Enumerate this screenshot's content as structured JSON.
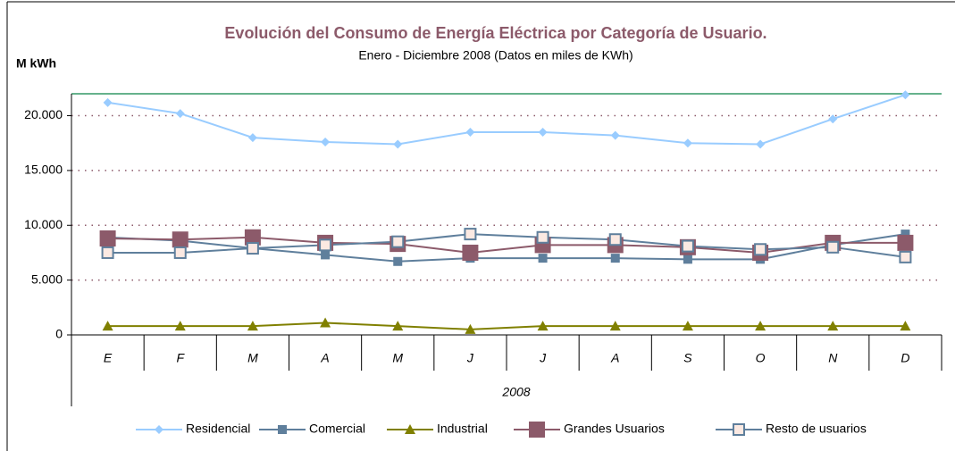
{
  "chart_data": {
    "type": "line",
    "title": "Evolución del Consumo de Energía Eléctrica por Categoría de Usuario.",
    "subtitle": "Enero  - Diciembre 2008 (Datos en miles de KWh)",
    "ylabel": "M kWh",
    "xlabel": "2008",
    "categories": [
      "E",
      "F",
      "M",
      "A",
      "M",
      "J",
      "J",
      "A",
      "S",
      "O",
      "N",
      "D"
    ],
    "series": [
      {
        "name": "Residencial",
        "color": "#99ccff",
        "marker": "diamond",
        "values": [
          21200,
          20200,
          18000,
          17600,
          17400,
          18500,
          18500,
          18200,
          17500,
          17400,
          19700,
          21900
        ]
      },
      {
        "name": "Comercial",
        "color": "#5f7f9c",
        "marker": "square",
        "values": [
          8900,
          8600,
          7900,
          7300,
          6700,
          7000,
          7000,
          7000,
          6900,
          6900,
          8200,
          9200
        ]
      },
      {
        "name": "Industrial",
        "color": "#808000",
        "marker": "triangle",
        "values": [
          800,
          800,
          800,
          1100,
          800,
          500,
          800,
          800,
          800,
          800,
          800,
          800
        ]
      },
      {
        "name": "Grandes Usuarios",
        "color": "#8c5a6a",
        "marker": "bigsquare",
        "values": [
          8800,
          8700,
          8900,
          8400,
          8300,
          7500,
          8200,
          8200,
          8000,
          7500,
          8400,
          8400
        ]
      },
      {
        "name": "Resto de usuarios",
        "color": "#5f7f9c",
        "marker": "hollowsquare",
        "values": [
          7500,
          7500,
          7900,
          8200,
          8500,
          9200,
          8900,
          8700,
          8100,
          7800,
          8000,
          7100
        ]
      }
    ],
    "ylim": [
      0,
      22000
    ],
    "yticks": [
      0,
      {
        "value": 5000,
        "label": "5.000"
      },
      {
        "value": 10000,
        "label": "10.000"
      },
      {
        "value": 15000,
        "label": "15.000"
      },
      {
        "value": 20000,
        "label": "20.000"
      }
    ],
    "grid": true,
    "legend": "bottom"
  }
}
